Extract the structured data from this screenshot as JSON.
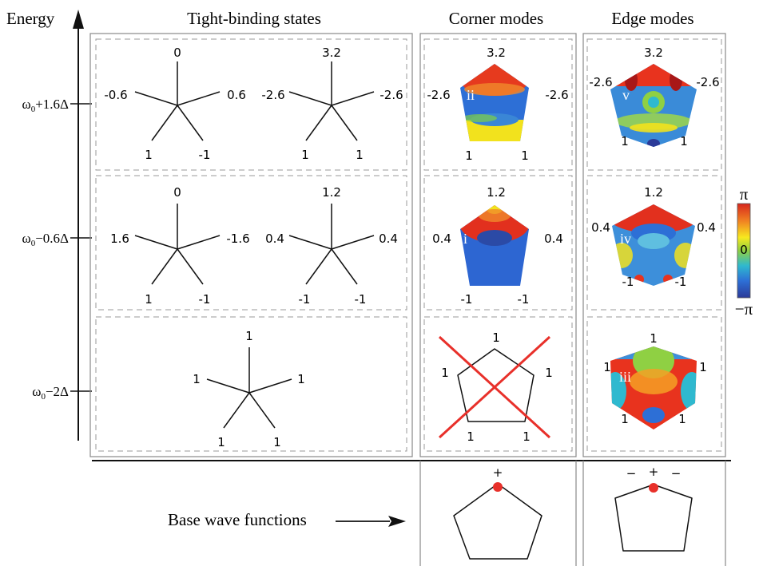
{
  "axis": {
    "title": "Energy",
    "levels": [
      {
        "prefix": "ω",
        "sub": "0",
        "suffix": "+1.6Δ"
      },
      {
        "prefix": "ω",
        "sub": "0",
        "suffix": "−0.6Δ"
      },
      {
        "prefix": "ω",
        "sub": "0",
        "suffix": "−2Δ"
      }
    ]
  },
  "columns": {
    "tight_binding": "Tight-binding states",
    "corner": "Corner modes",
    "edge": "Edge modes"
  },
  "tight_binding": {
    "row1": [
      {
        "top": "0",
        "left": "-0.6",
        "right": "0.6",
        "bl": "1",
        "br": "-1"
      },
      {
        "top": "3.2",
        "left": "-2.6",
        "right": "-2.6",
        "bl": "1",
        "br": "1"
      }
    ],
    "row2": [
      {
        "top": "0",
        "left": "1.6",
        "right": "-1.6",
        "bl": "1",
        "br": "-1"
      },
      {
        "top": "1.2",
        "left": "0.4",
        "right": "0.4",
        "bl": "-1",
        "br": "-1"
      }
    ],
    "row3": [
      {
        "top": "1",
        "left": "1",
        "right": "1",
        "bl": "1",
        "br": "1"
      }
    ]
  },
  "corner_modes": {
    "row1": {
      "id": "ii",
      "top": "3.2",
      "left": "-2.6",
      "right": "-2.6",
      "bl": "1",
      "br": "1"
    },
    "row2": {
      "id": "i",
      "top": "1.2",
      "left": "0.4",
      "right": "0.4",
      "bl": "-1",
      "br": "-1"
    },
    "row3": {
      "top": "1",
      "left": "1",
      "right": "1",
      "bl": "1",
      "br": "1"
    }
  },
  "edge_modes": {
    "row1": {
      "id": "v",
      "top": "3.2",
      "left": "-2.6",
      "right": "-2.6",
      "bl": "1",
      "br": "1"
    },
    "row2": {
      "id": "iv",
      "top": "1.2",
      "left": "0.4",
      "right": "0.4",
      "bl": "-1",
      "br": "-1"
    },
    "row3": {
      "id": "iii",
      "top": "1",
      "left": "1",
      "right": "1",
      "bl": "1",
      "br": "1"
    }
  },
  "colorbar": {
    "max": "π",
    "mid": "0",
    "min": "−π",
    "colors": [
      "#d7261d",
      "#f07f22",
      "#f7e91f",
      "#8fd043",
      "#2fb9cf",
      "#2d6fd6",
      "#2b3a98"
    ]
  },
  "base": {
    "label": "Base wave functions",
    "corner_sign": "+",
    "edge_signs": [
      "−",
      "+",
      "−"
    ],
    "dot_color": "#e8302a"
  },
  "colors": {
    "cross": "#e8302a"
  }
}
